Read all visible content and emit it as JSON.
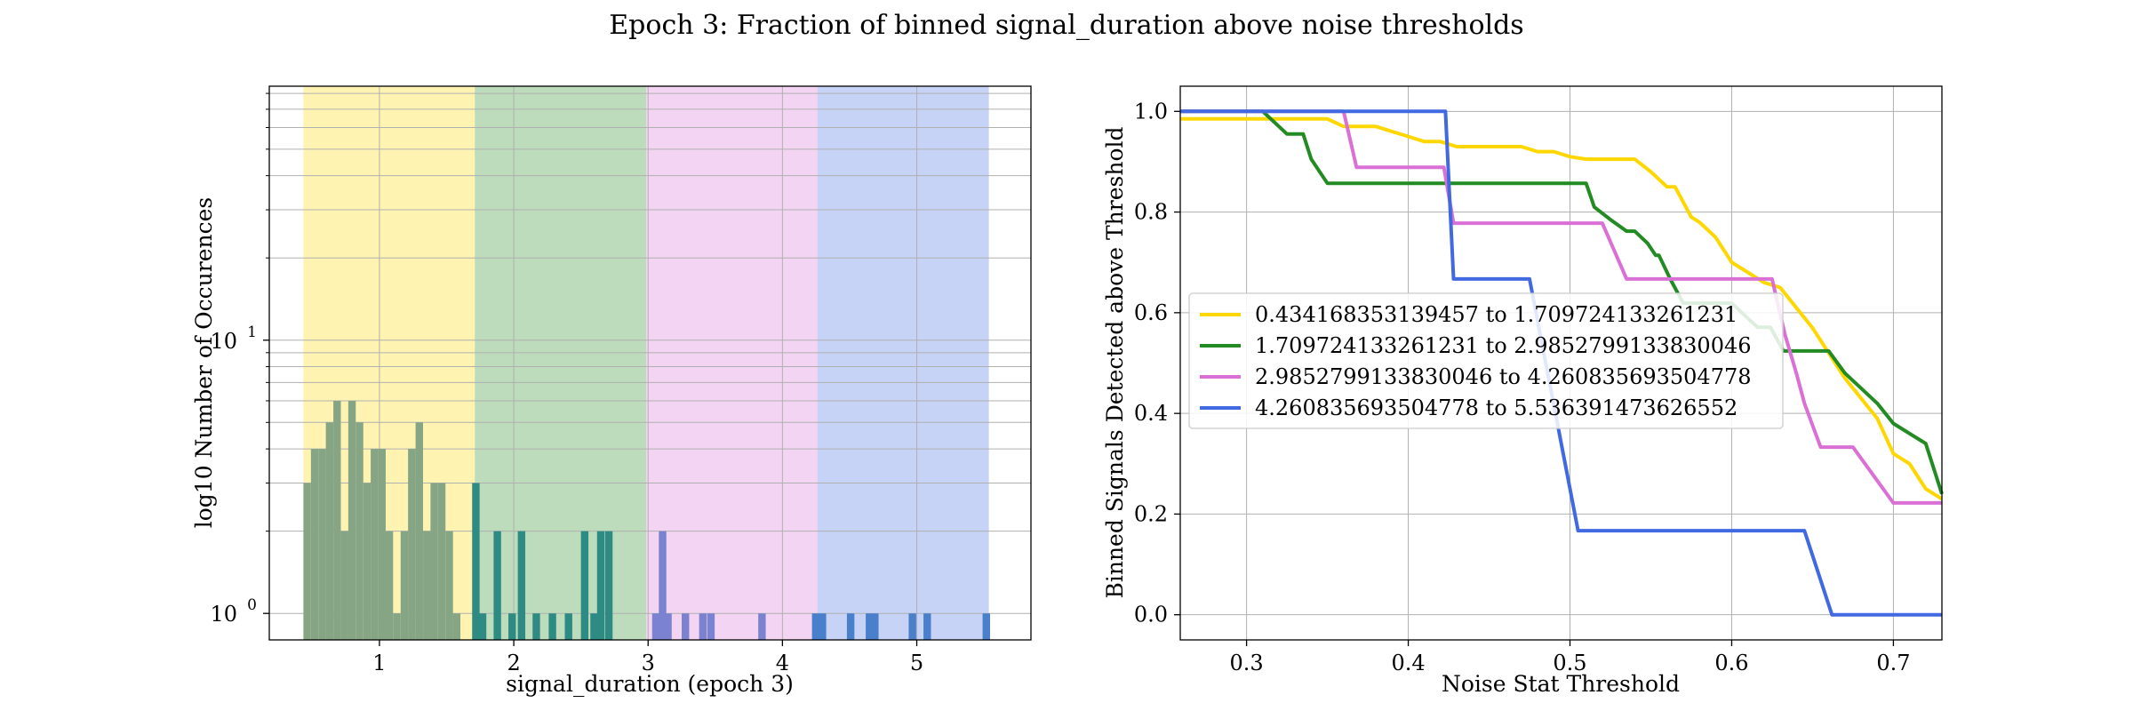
{
  "figure": {
    "suptitle": "Epoch 3: Fraction of binned signal_duration above noise thresholds"
  },
  "chart_data": [
    {
      "type": "bar",
      "name": "histogram",
      "xlabel": "signal_duration (epoch 3)",
      "ylabel": "log10 Number of Occurences",
      "yscale": "log",
      "xlim": [
        0.18,
        5.85
      ],
      "ylim": [
        0.8,
        85
      ],
      "xticks": [
        1,
        2,
        3,
        4,
        5
      ],
      "yticks": [
        {
          "value": 1,
          "label": "10^0"
        },
        {
          "value": 10,
          "label": "10^1"
        }
      ],
      "grid": true,
      "bands": [
        {
          "x0": 0.434168353139457,
          "x1": 1.709724133261231,
          "color": "#FFD700"
        },
        {
          "x0": 1.709724133261231,
          "x1": 2.9852799133830046,
          "color": "#228B22"
        },
        {
          "x0": 2.9852799133830046,
          "x1": 4.260835693504778,
          "color": "#DA70D6"
        },
        {
          "x0": 4.260835693504778,
          "x1": 5.536391473626552,
          "color": "#4169E1"
        }
      ],
      "bin_width": 0.0556,
      "bins": [
        {
          "x": 0.434,
          "count": 3,
          "color": "#86a584"
        },
        {
          "x": 0.49,
          "count": 4,
          "color": "#86a584"
        },
        {
          "x": 0.546,
          "count": 4,
          "color": "#86a584"
        },
        {
          "x": 0.601,
          "count": 5,
          "color": "#86a584"
        },
        {
          "x": 0.657,
          "count": 6,
          "color": "#86a584"
        },
        {
          "x": 0.713,
          "count": 2,
          "color": "#86a584"
        },
        {
          "x": 0.768,
          "count": 6,
          "color": "#86a584"
        },
        {
          "x": 0.824,
          "count": 5,
          "color": "#86a584"
        },
        {
          "x": 0.88,
          "count": 3,
          "color": "#86a584"
        },
        {
          "x": 0.935,
          "count": 4,
          "color": "#86a584"
        },
        {
          "x": 0.991,
          "count": 4,
          "color": "#86a584"
        },
        {
          "x": 1.046,
          "count": 2,
          "color": "#86a584"
        },
        {
          "x": 1.102,
          "count": 1,
          "color": "#86a584"
        },
        {
          "x": 1.158,
          "count": 2,
          "color": "#86a584"
        },
        {
          "x": 1.213,
          "count": 4,
          "color": "#86a584"
        },
        {
          "x": 1.269,
          "count": 5,
          "color": "#86a584"
        },
        {
          "x": 1.325,
          "count": 2,
          "color": "#86a584"
        },
        {
          "x": 1.38,
          "count": 3,
          "color": "#86a584"
        },
        {
          "x": 1.436,
          "count": 3,
          "color": "#86a584"
        },
        {
          "x": 1.492,
          "count": 2,
          "color": "#86a584"
        },
        {
          "x": 1.547,
          "count": 1,
          "color": "#86a584"
        },
        {
          "x": 1.69,
          "count": 3,
          "color": "#2e8b84"
        },
        {
          "x": 1.74,
          "count": 1,
          "color": "#2e8b84"
        },
        {
          "x": 1.85,
          "count": 2,
          "color": "#2e8b84"
        },
        {
          "x": 1.96,
          "count": 1,
          "color": "#2e8b84"
        },
        {
          "x": 2.03,
          "count": 2,
          "color": "#2e8b84"
        },
        {
          "x": 2.14,
          "count": 1,
          "color": "#2e8b84"
        },
        {
          "x": 2.26,
          "count": 1,
          "color": "#2e8b84"
        },
        {
          "x": 2.38,
          "count": 1,
          "color": "#2e8b84"
        },
        {
          "x": 2.5,
          "count": 2,
          "color": "#2e8b84"
        },
        {
          "x": 2.57,
          "count": 1,
          "color": "#2e8b84"
        },
        {
          "x": 2.62,
          "count": 2,
          "color": "#2e8b84"
        },
        {
          "x": 2.68,
          "count": 2,
          "color": "#2e8b84"
        },
        {
          "x": 3.03,
          "count": 1,
          "color": "#7b82cf"
        },
        {
          "x": 3.08,
          "count": 2,
          "color": "#7b82cf"
        },
        {
          "x": 3.12,
          "count": 1,
          "color": "#7b82cf"
        },
        {
          "x": 3.25,
          "count": 1,
          "color": "#7b82cf"
        },
        {
          "x": 3.38,
          "count": 1,
          "color": "#7b82cf"
        },
        {
          "x": 3.44,
          "count": 1,
          "color": "#7b82cf"
        },
        {
          "x": 3.82,
          "count": 1,
          "color": "#7b82cf"
        },
        {
          "x": 4.22,
          "count": 1,
          "color": "#4a7fcc"
        },
        {
          "x": 4.27,
          "count": 1,
          "color": "#4a7fcc"
        },
        {
          "x": 4.48,
          "count": 1,
          "color": "#4a7fcc"
        },
        {
          "x": 4.62,
          "count": 1,
          "color": "#4a7fcc"
        },
        {
          "x": 4.66,
          "count": 1,
          "color": "#4a7fcc"
        },
        {
          "x": 4.94,
          "count": 1,
          "color": "#4a7fcc"
        },
        {
          "x": 5.05,
          "count": 1,
          "color": "#4a7fcc"
        },
        {
          "x": 5.49,
          "count": 1,
          "color": "#4a7fcc"
        }
      ]
    },
    {
      "type": "line",
      "name": "threshold-curves",
      "xlabel": "Noise Stat Threshold",
      "ylabel": "Binned Signals Detected above Threshold",
      "xlim": [
        0.259,
        0.73
      ],
      "ylim": [
        -0.05,
        1.05
      ],
      "xticks": [
        0.3,
        0.4,
        0.5,
        0.6,
        0.7
      ],
      "yticks": [
        0.0,
        0.2,
        0.4,
        0.6,
        0.8,
        1.0
      ],
      "grid": true,
      "legend_loc": "center-left",
      "series": [
        {
          "name": "0.434168353139457 to 1.709724133261231",
          "color": "#FFD700",
          "x": [
            0.259,
            0.35,
            0.36,
            0.38,
            0.39,
            0.4,
            0.41,
            0.42,
            0.43,
            0.44,
            0.47,
            0.48,
            0.49,
            0.5,
            0.51,
            0.54,
            0.55,
            0.56,
            0.565,
            0.57,
            0.575,
            0.58,
            0.59,
            0.6,
            0.61,
            0.62,
            0.63,
            0.64,
            0.65,
            0.66,
            0.67,
            0.68,
            0.69,
            0.7,
            0.71,
            0.72,
            0.73
          ],
          "y": [
            0.985,
            0.985,
            0.97,
            0.97,
            0.96,
            0.95,
            0.94,
            0.94,
            0.93,
            0.93,
            0.93,
            0.92,
            0.92,
            0.91,
            0.905,
            0.905,
            0.88,
            0.85,
            0.85,
            0.82,
            0.79,
            0.78,
            0.75,
            0.7,
            0.68,
            0.66,
            0.65,
            0.61,
            0.57,
            0.52,
            0.47,
            0.43,
            0.39,
            0.32,
            0.3,
            0.25,
            0.23
          ]
        },
        {
          "name": "1.709724133261231 to 2.9852799133830046",
          "color": "#228B22",
          "x": [
            0.259,
            0.31,
            0.32,
            0.325,
            0.335,
            0.34,
            0.35,
            0.51,
            0.515,
            0.525,
            0.535,
            0.54,
            0.548,
            0.553,
            0.555,
            0.562,
            0.57,
            0.6,
            0.608,
            0.616,
            0.624,
            0.632,
            0.645,
            0.66,
            0.67,
            0.68,
            0.69,
            0.7,
            0.71,
            0.72,
            0.73
          ],
          "y": [
            1.0,
            1.0,
            0.97,
            0.955,
            0.955,
            0.905,
            0.857,
            0.857,
            0.81,
            0.785,
            0.762,
            0.762,
            0.738,
            0.714,
            0.714,
            0.667,
            0.619,
            0.619,
            0.595,
            0.571,
            0.571,
            0.524,
            0.524,
            0.524,
            0.48,
            0.45,
            0.42,
            0.38,
            0.36,
            0.34,
            0.24
          ]
        },
        {
          "name": "2.9852799133830046 to 4.260835693504778",
          "color": "#DA70D6",
          "x": [
            0.259,
            0.36,
            0.368,
            0.422,
            0.428,
            0.52,
            0.535,
            0.625,
            0.629,
            0.633,
            0.64,
            0.645,
            0.655,
            0.66,
            0.675,
            0.7,
            0.73
          ],
          "y": [
            1.0,
            1.0,
            0.889,
            0.889,
            0.778,
            0.778,
            0.667,
            0.667,
            0.611,
            0.556,
            0.48,
            0.42,
            0.333,
            0.333,
            0.333,
            0.222,
            0.222
          ]
        },
        {
          "name": "4.260835693504778 to 5.536391473626552",
          "color": "#4169E1",
          "x": [
            0.259,
            0.423,
            0.428,
            0.475,
            0.505,
            0.645,
            0.662,
            0.73
          ],
          "y": [
            1.0,
            1.0,
            0.667,
            0.667,
            0.167,
            0.167,
            0.0,
            0.0
          ]
        }
      ]
    }
  ]
}
